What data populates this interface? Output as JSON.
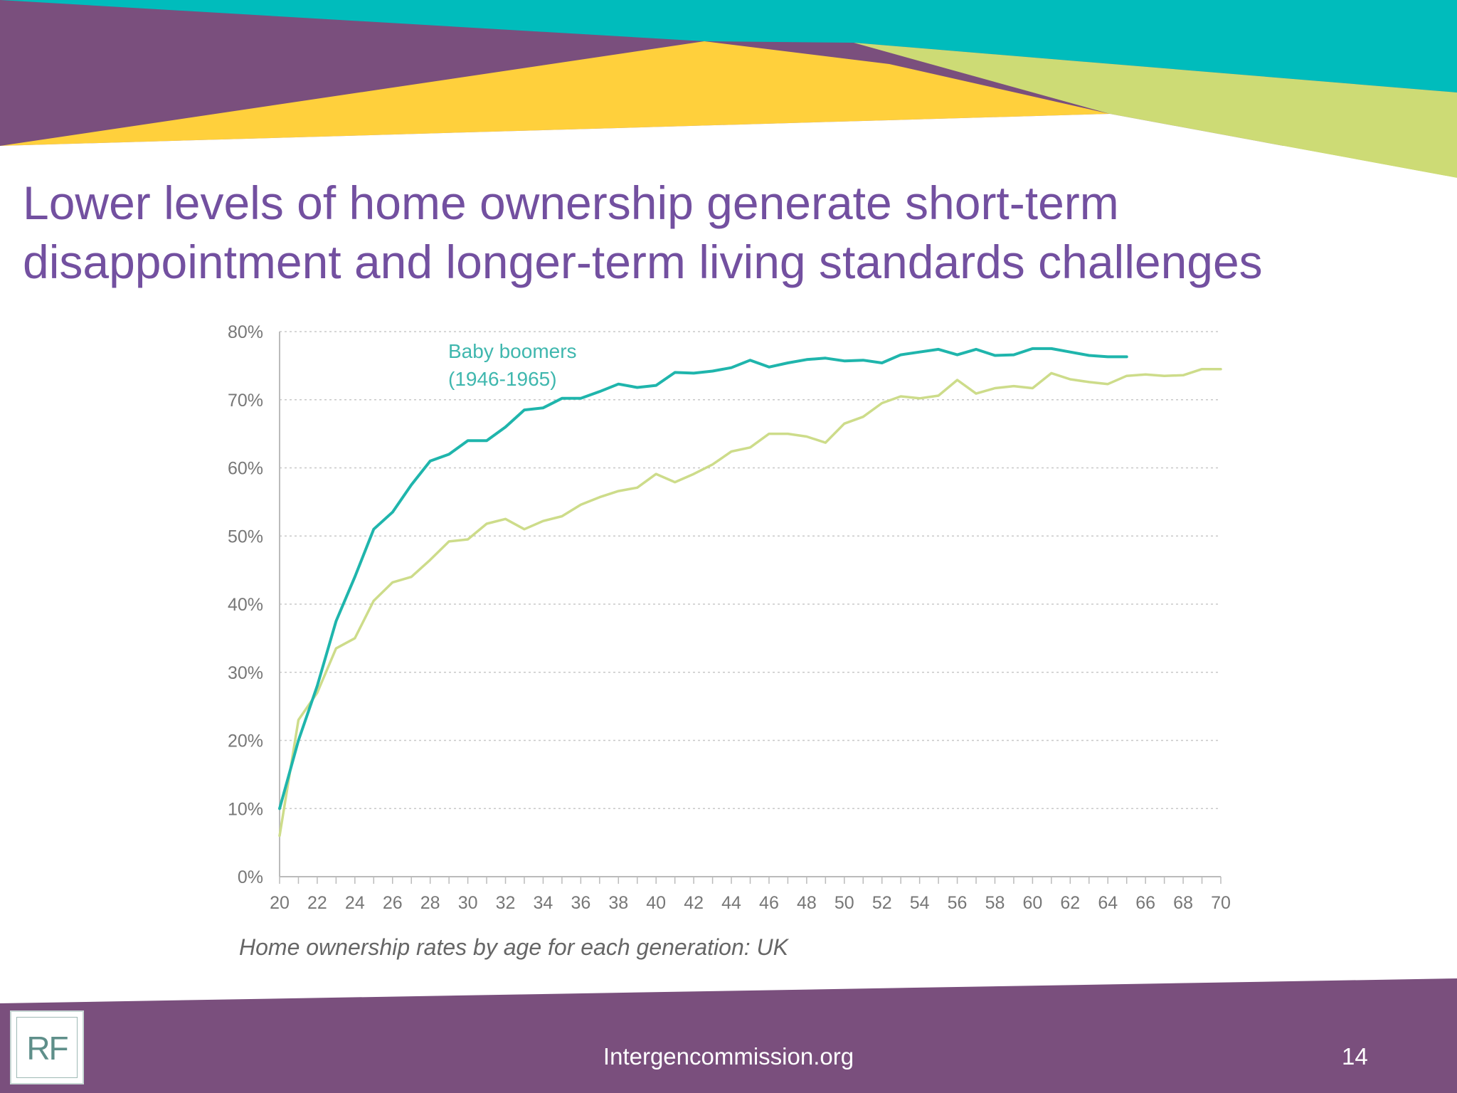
{
  "slide": {
    "title_line1": "Lower levels of home ownership generate short-term",
    "title_line2": "disappointment and longer-term living standards challenges",
    "caption": "Home ownership rates by age for each generation: UK",
    "footer_url": "Intergencommission.org",
    "page_number": "14",
    "logo_text": "RF"
  },
  "colors": {
    "purple": "#7a4f7d",
    "teal": "#00bcbc",
    "yellow": "#ffd03c",
    "lime": "#cddb75",
    "title": "#7350a0",
    "series_boomers": "#1fb5ac",
    "series_other": "#cddc8a"
  },
  "chart_data": {
    "type": "line",
    "x_ticks": [
      20,
      22,
      24,
      26,
      28,
      30,
      32,
      34,
      36,
      38,
      40,
      42,
      44,
      46,
      48,
      50,
      52,
      54,
      56,
      58,
      60,
      62,
      64,
      66,
      68,
      70
    ],
    "y_ticks": [
      "0%",
      "10%",
      "20%",
      "30%",
      "40%",
      "50%",
      "60%",
      "70%",
      "80%"
    ],
    "xlim": [
      20,
      70
    ],
    "ylim": [
      0,
      80
    ],
    "grid": "horizontal dotted",
    "series": [
      {
        "name": "Baby boomers",
        "label_line1": "Baby boomers",
        "label_line2": "(1946-1965)",
        "color": "#1fb5ac",
        "x": [
          20,
          21,
          22,
          23,
          24,
          25,
          26,
          27,
          28,
          29,
          30,
          31,
          32,
          33,
          34,
          35,
          36,
          37,
          38,
          39,
          40,
          41,
          42,
          43,
          44,
          45,
          46,
          47,
          48,
          49,
          50,
          51,
          52,
          53,
          54,
          55,
          56,
          57,
          58,
          59,
          60,
          61,
          62,
          63,
          64,
          65
        ],
        "y": [
          10,
          20,
          28,
          37.5,
          44,
          51,
          53.5,
          57.5,
          61,
          62,
          64,
          64,
          66,
          68.5,
          68.8,
          70.2,
          70.2,
          71.2,
          72.3,
          71.8,
          72.1,
          74,
          73.9,
          74.2,
          74.7,
          75.8,
          74.8,
          75.4,
          75.9,
          76.1,
          75.7,
          75.8,
          75.4,
          76.6,
          77,
          77.4,
          76.6,
          77.4,
          76.5,
          76.6,
          77.5,
          77.5,
          77,
          76.5,
          76.3,
          76.3
        ]
      },
      {
        "name": "",
        "color": "#cddc8a",
        "x": [
          20,
          21,
          22,
          23,
          24,
          25,
          26,
          27,
          28,
          29,
          30,
          31,
          32,
          33,
          34,
          35,
          36,
          37,
          38,
          39,
          40,
          41,
          42,
          43,
          44,
          45,
          46,
          47,
          48,
          49,
          50,
          51,
          52,
          53,
          54,
          55,
          56,
          57,
          58,
          59,
          60,
          61,
          62,
          63,
          64,
          65,
          66,
          67,
          68,
          69,
          70
        ],
        "y": [
          6,
          23,
          27,
          33.5,
          35,
          40.5,
          43.2,
          44,
          46.5,
          49.2,
          49.5,
          51.8,
          52.5,
          51,
          52.2,
          52.9,
          54.6,
          55.7,
          56.6,
          57.1,
          59.1,
          57.9,
          59.1,
          60.5,
          62.4,
          63,
          65,
          65,
          64.6,
          63.7,
          66.5,
          67.5,
          69.5,
          70.5,
          70.2,
          70.6,
          72.9,
          70.9,
          71.7,
          72,
          71.7,
          73.9,
          73,
          72.6,
          72.3,
          73.5,
          73.7,
          73.5,
          73.6,
          74.5,
          74.5
        ]
      }
    ]
  }
}
